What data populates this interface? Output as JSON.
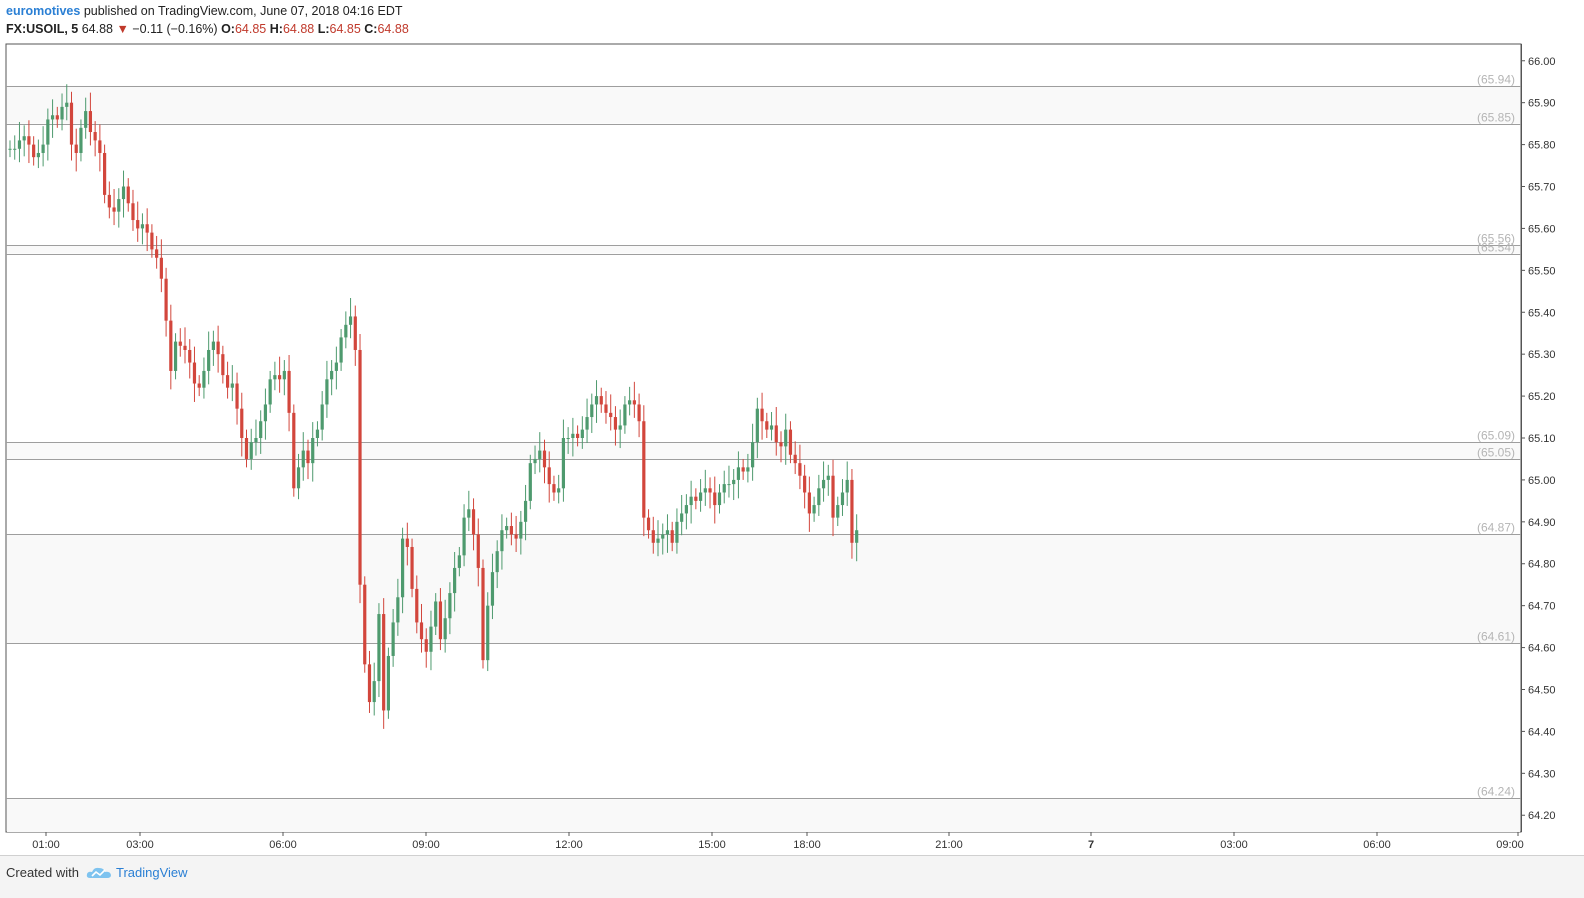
{
  "header": {
    "author": "euromotives",
    "published": " published on TradingView.com, June 07, 2018 04:16 EDT",
    "symbol": "FX:USOIL, 5",
    "last": "64.88",
    "down_arrow": "▼",
    "change": "−0.11 (−0.16%)",
    "o_label": "O:",
    "o_value": "64.85",
    "h_label": "H:",
    "h_value": "64.88",
    "l_label": "L:",
    "l_value": "64.85",
    "c_label": "C:",
    "c_value": "64.88"
  },
  "footer": {
    "created": "Created with",
    "brand": "TradingView",
    "logo_icon": "tradingview-cloud-icon"
  },
  "colors": {
    "up": "#4e9a6e",
    "down": "#d2463c",
    "level_line": "#9e9e9e",
    "band_fill": "#f9f9f9",
    "brand": "#2a7fd4"
  },
  "chart_data": {
    "type": "candlestick",
    "symbol": "FX:USOIL",
    "interval": "5",
    "ylim": [
      64.16,
      66.04
    ],
    "y_ticks": [
      "66.00",
      "65.90",
      "65.80",
      "65.70",
      "65.60",
      "65.50",
      "65.40",
      "65.30",
      "65.20",
      "65.10",
      "65.00",
      "64.90",
      "64.80",
      "64.70",
      "64.60",
      "64.50",
      "64.40",
      "64.30",
      "64.20"
    ],
    "x_ticks": [
      "01:00",
      "03:00",
      "06:00",
      "09:00",
      "12:00",
      "15:00",
      "18:00",
      "21:00",
      "7",
      "03:00",
      "06:00",
      "09:00"
    ],
    "levels": [
      {
        "value": 65.94,
        "label": "(65.94)"
      },
      {
        "value": 65.85,
        "label": "(65.85)"
      },
      {
        "value": 65.56,
        "label": "(65.56)"
      },
      {
        "value": 65.54,
        "label": "(65.54)"
      },
      {
        "value": 65.09,
        "label": "(65.09)"
      },
      {
        "value": 65.05,
        "label": "(65.05)"
      },
      {
        "value": 64.87,
        "label": "(64.87)"
      },
      {
        "value": 64.61,
        "label": "(64.61)"
      },
      {
        "value": 64.24,
        "label": "(64.24)"
      }
    ],
    "shaded_bands": [
      [
        65.85,
        65.94
      ],
      [
        65.54,
        65.56
      ],
      [
        65.05,
        65.09
      ],
      [
        64.61,
        64.87
      ],
      [
        64.16,
        64.24
      ]
    ],
    "candles_approx_close": [
      65.79,
      65.79,
      65.81,
      65.82,
      65.8,
      65.77,
      65.78,
      65.8,
      65.86,
      65.87,
      65.86,
      65.89,
      65.9,
      65.8,
      65.78,
      65.84,
      65.88,
      65.83,
      65.81,
      65.78,
      65.68,
      65.65,
      65.64,
      65.67,
      65.7,
      65.66,
      65.62,
      65.6,
      65.61,
      65.59,
      65.55,
      65.53,
      65.48,
      65.38,
      65.26,
      65.33,
      65.32,
      65.31,
      65.28,
      65.23,
      65.22,
      65.26,
      65.31,
      65.33,
      65.3,
      65.25,
      65.22,
      65.23,
      65.17,
      65.1,
      65.05,
      65.09,
      65.1,
      65.14,
      65.18,
      65.24,
      65.25,
      65.24,
      65.26,
      65.16,
      64.98,
      65.03,
      65.07,
      65.04,
      65.1,
      65.12,
      65.18,
      65.24,
      65.26,
      65.28,
      65.34,
      65.37,
      65.39,
      65.31,
      64.75,
      64.56,
      64.47,
      64.52,
      64.68,
      64.45,
      64.58,
      64.66,
      64.72,
      64.86,
      64.84,
      64.74,
      64.66,
      64.62,
      64.59,
      64.65,
      64.71,
      64.62,
      64.67,
      64.73,
      64.79,
      64.82,
      64.91,
      64.93,
      64.87,
      64.79,
      64.57,
      64.7,
      64.78,
      64.83,
      64.88,
      64.89,
      64.87,
      64.86,
      64.9,
      64.95,
      65.04,
      65.05,
      65.07,
      65.03,
      64.99,
      64.97,
      64.98,
      65.1,
      65.1,
      65.11,
      65.1,
      65.12,
      65.15,
      65.18,
      65.2,
      65.18,
      65.16,
      65.15,
      65.12,
      65.13,
      65.18,
      65.19,
      65.18,
      65.14,
      64.91,
      64.88,
      64.85,
      64.86,
      64.87,
      64.88,
      64.85,
      64.9,
      64.92,
      64.94,
      64.96,
      64.95,
      64.97,
      64.98,
      64.97,
      64.94,
      64.97,
      64.99,
      64.99,
      65.0,
      65.03,
      65.02,
      65.03,
      65.09,
      65.17,
      65.14,
      65.12,
      65.13,
      65.09,
      65.08,
      65.12,
      65.06,
      65.04,
      65.01,
      64.97,
      64.92,
      64.94,
      64.98,
      65.0,
      65.01,
      64.91,
      64.94,
      64.97,
      65.0,
      64.85,
      64.88
    ]
  }
}
